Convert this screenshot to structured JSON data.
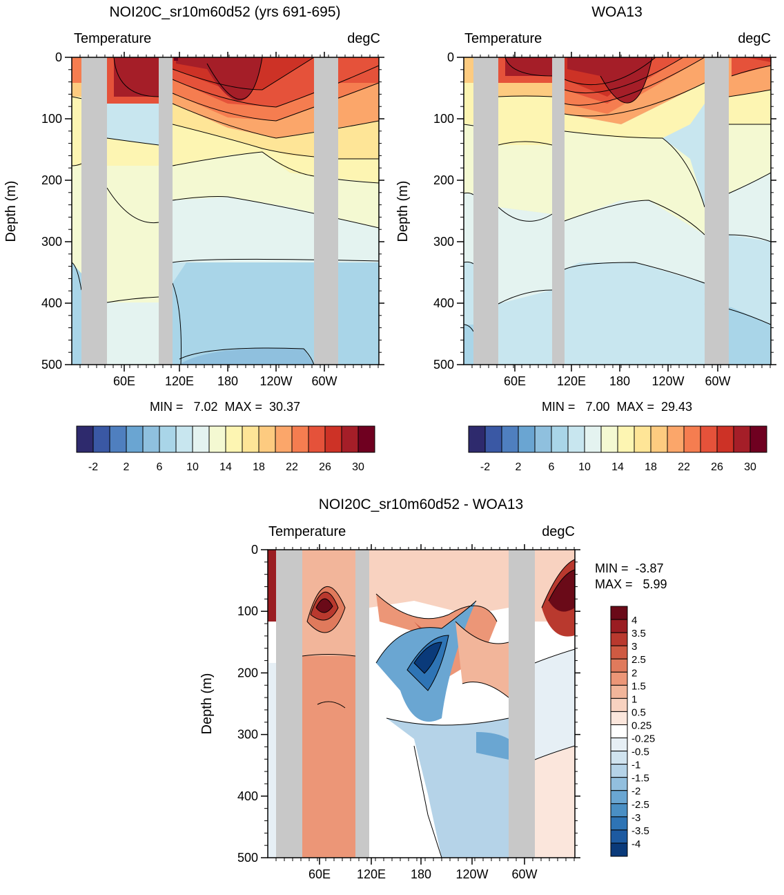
{
  "colors": {
    "land": "#c8c8c8",
    "temp_scale": [
      "#2e2a6d",
      "#3a58a4",
      "#4f7fbf",
      "#6aa5d2",
      "#8fc0de",
      "#a9d5e8",
      "#c8e6ef",
      "#e4f3f0",
      "#f4f9d2",
      "#fdf5b2",
      "#fee597",
      "#fdcb80",
      "#fba66a",
      "#f57d50",
      "#e5523a",
      "#cd3226",
      "#a51e28",
      "#6f0020"
    ],
    "diff_scale": [
      "#0a3a7a",
      "#1d5aa1",
      "#2e74b5",
      "#4a8fc4",
      "#6aa6d2",
      "#92bfde",
      "#b5d3e8",
      "#d0e3ef",
      "#e6eff5",
      "#ffffff",
      "#fbe6dc",
      "#f8d2c0",
      "#f2b59a",
      "#ec9677",
      "#e07a5c",
      "#cf5a42",
      "#b9392e",
      "#9a1d22",
      "#6a0a18"
    ]
  },
  "panels": [
    {
      "title": "NOI20C_sr10m60d52 (yrs 691-695)",
      "left_label": "Temperature",
      "right_label": "degC",
      "ylabel": "Depth (m)",
      "stats": "MIN =   7.02  MAX =  30.37",
      "min": 7.02,
      "max": 30.37
    },
    {
      "title": "WOA13",
      "left_label": "Temperature",
      "right_label": "degC",
      "ylabel": "Depth (m)",
      "stats": "MIN =   7.00  MAX =  29.43",
      "min": 7.0,
      "max": 29.43
    },
    {
      "title": "NOI20C_sr10m60d52 - WOA13",
      "left_label": "Temperature",
      "right_label": "degC",
      "ylabel": "Depth (m)",
      "stats_min": "MIN =  -3.87",
      "stats_max": "MAX =   5.99",
      "min": -3.87,
      "max": 5.99
    }
  ],
  "temp_colorbar_labels": [
    "-2",
    "2",
    "6",
    "10",
    "14",
    "18",
    "22",
    "26",
    "30"
  ],
  "diff_colorbar_labels": [
    "4",
    "3.5",
    "3",
    "2.5",
    "2",
    "1.5",
    "1",
    "0.5",
    "0.25",
    "-0.25",
    "-0.5",
    "-1",
    "-1.5",
    "-2",
    "-2.5",
    "-3",
    "-3.5",
    "-4"
  ],
  "chart_data": [
    {
      "type": "heatmap",
      "title": "NOI20C_sr10m60d52 (yrs 691-695)",
      "variable": "Temperature",
      "units": "degC",
      "xlabel": "",
      "ylabel": "Depth (m)",
      "xticks": [
        "60E",
        "120E",
        "180",
        "120W",
        "60W"
      ],
      "yticks": [
        0,
        100,
        200,
        300,
        400,
        500
      ],
      "ylim": [
        500,
        0
      ],
      "contour_levels": [
        -4,
        -2,
        0,
        2,
        4,
        6,
        8,
        10,
        12,
        14,
        16,
        18,
        20,
        22,
        24,
        26,
        28,
        30,
        32
      ],
      "min": 7.02,
      "max": 30.37
    },
    {
      "type": "heatmap",
      "title": "WOA13",
      "variable": "Temperature",
      "units": "degC",
      "xlabel": "",
      "ylabel": "Depth (m)",
      "xticks": [
        "60E",
        "120E",
        "180",
        "120W",
        "60W"
      ],
      "yticks": [
        0,
        100,
        200,
        300,
        400,
        500
      ],
      "ylim": [
        500,
        0
      ],
      "contour_levels": [
        -4,
        -2,
        0,
        2,
        4,
        6,
        8,
        10,
        12,
        14,
        16,
        18,
        20,
        22,
        24,
        26,
        28,
        30,
        32
      ],
      "min": 7.0,
      "max": 29.43
    },
    {
      "type": "heatmap",
      "title": "NOI20C_sr10m60d52 - WOA13",
      "variable": "Temperature",
      "units": "degC",
      "xlabel": "",
      "ylabel": "Depth (m)",
      "xticks": [
        "60E",
        "120E",
        "180",
        "120W",
        "60W"
      ],
      "yticks": [
        0,
        100,
        200,
        300,
        400,
        500
      ],
      "ylim": [
        500,
        0
      ],
      "contour_levels": [
        -4,
        -3.5,
        -3,
        -2.5,
        -2,
        -1.5,
        -1,
        -0.5,
        -0.25,
        0.25,
        0.5,
        1,
        1.5,
        2,
        2.5,
        3,
        3.5,
        4
      ],
      "min": -3.87,
      "max": 5.99
    }
  ]
}
